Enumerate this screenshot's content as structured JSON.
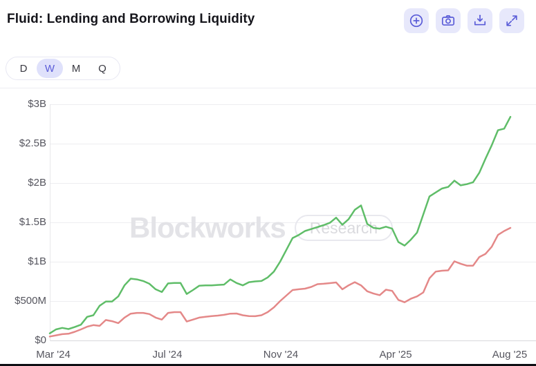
{
  "header": {
    "title": "Fluid: Lending and Borrowing Liquidity",
    "toolbar": [
      {
        "name": "zoom-in",
        "icon": "plus-circle-icon"
      },
      {
        "name": "screenshot",
        "icon": "camera-icon"
      },
      {
        "name": "download",
        "icon": "download-tray-icon"
      },
      {
        "name": "fullscreen",
        "icon": "expand-arrows-icon"
      }
    ]
  },
  "period_selector": {
    "options": [
      {
        "label": "D",
        "selected": false
      },
      {
        "label": "W",
        "selected": true
      },
      {
        "label": "M",
        "selected": false
      },
      {
        "label": "Q",
        "selected": false
      }
    ]
  },
  "watermark": {
    "brand": "Blockworks",
    "badge": "Research"
  },
  "colors": {
    "accent_indigo": "#5a5cd8",
    "accent_bg": "#e7e8fb",
    "green_series": "#5fbd68",
    "red_series": "#e48888",
    "grid": "#ededf0",
    "axis": "#d8d8dc",
    "axis_text": "#55555e"
  },
  "chart_data": {
    "type": "line",
    "title": "Fluid: Lending and Borrowing Liquidity",
    "interval_selected": "W",
    "grid": "horizontal",
    "legend_position": "none",
    "ylim_musd": [
      0,
      3000
    ],
    "y_ticks": [
      {
        "label": "$0",
        "musd": 0
      },
      {
        "label": "$500M",
        "musd": 500
      },
      {
        "label": "$1B",
        "musd": 1000
      },
      {
        "label": "$1.5B",
        "musd": 1500
      },
      {
        "label": "$2B",
        "musd": 2000
      },
      {
        "label": "$2.5B",
        "musd": 2500
      },
      {
        "label": "$3B",
        "musd": 3000
      }
    ],
    "x_tick_labels": [
      "Mar '24",
      "Jul '24",
      "Nov '24",
      "Apr '25",
      "Aug '25"
    ],
    "x_tick_indices": [
      0.56,
      18.89,
      37.11,
      55.56,
      73.89
    ],
    "series": [
      {
        "name": "green-line",
        "color": "#5fbd68",
        "values_musd": [
          90,
          140,
          160,
          145,
          170,
          200,
          300,
          320,
          440,
          495,
          495,
          560,
          700,
          785,
          775,
          755,
          720,
          650,
          615,
          725,
          730,
          730,
          590,
          640,
          695,
          700,
          700,
          705,
          710,
          775,
          730,
          700,
          740,
          750,
          755,
          800,
          875,
          1000,
          1150,
          1300,
          1340,
          1390,
          1415,
          1440,
          1465,
          1495,
          1560,
          1470,
          1540,
          1660,
          1715,
          1480,
          1430,
          1420,
          1445,
          1420,
          1250,
          1205,
          1280,
          1370,
          1600,
          1830,
          1880,
          1930,
          1950,
          2030,
          1970,
          1985,
          2010,
          2130,
          2310,
          2480,
          2670,
          2690,
          2840
        ]
      },
      {
        "name": "red-line",
        "color": "#e48888",
        "values_musd": [
          50,
          65,
          80,
          85,
          110,
          140,
          175,
          195,
          185,
          260,
          245,
          220,
          290,
          340,
          350,
          350,
          335,
          290,
          265,
          350,
          360,
          360,
          240,
          265,
          290,
          300,
          310,
          316,
          325,
          340,
          342,
          320,
          310,
          308,
          320,
          360,
          420,
          500,
          570,
          640,
          650,
          658,
          680,
          715,
          720,
          728,
          737,
          650,
          700,
          740,
          700,
          625,
          596,
          575,
          645,
          630,
          515,
          485,
          530,
          560,
          610,
          790,
          875,
          886,
          890,
          1005,
          975,
          950,
          950,
          1060,
          1100,
          1190,
          1340,
          1390,
          1430
        ]
      }
    ]
  }
}
